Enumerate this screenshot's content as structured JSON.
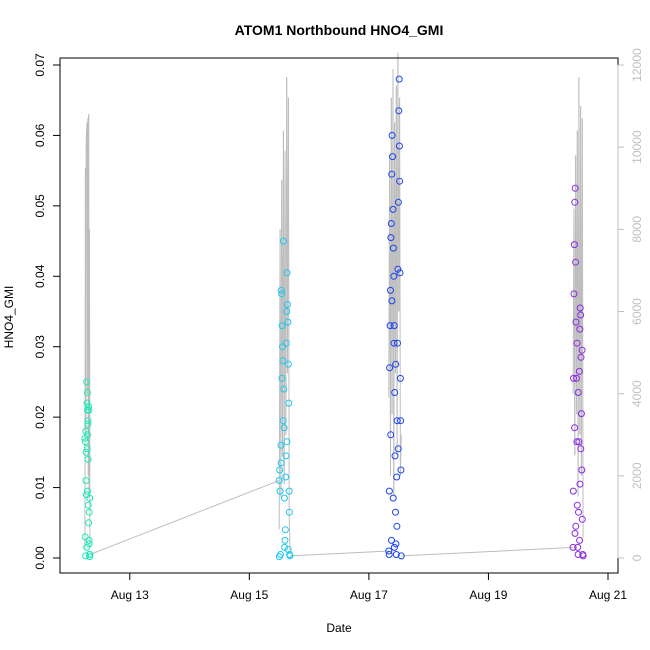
{
  "chart_data": {
    "type": "scatter",
    "title": "ATOM1 Northbound HNO4_GMI",
    "xlabel": "Date",
    "ylabel": "HNO4_GMI",
    "xlim": [
      "2016-08-12T00:00",
      "2016-08-21T00:00"
    ],
    "ylim": [
      0,
      0.07
    ],
    "x_ticks": [
      "Aug 13",
      "Aug 15",
      "Aug 17",
      "Aug 19",
      "Aug 21"
    ],
    "y_ticks": [
      "0.00",
      "0.01",
      "0.02",
      "0.03",
      "0.04",
      "0.05",
      "0.06",
      "0.07"
    ],
    "secondary_axis": {
      "ylim": [
        0,
        12000
      ],
      "ticks": [
        "0",
        "2000",
        "4000",
        "6000",
        "8000",
        "10000",
        "12000"
      ],
      "color": "#c0c0c0"
    },
    "series": [
      {
        "color": "#1de9b6",
        "values": [
          [
            "2016-08-12T06:00",
            0.017
          ],
          [
            "2016-08-12T06:10",
            0.0165
          ],
          [
            "2016-08-12T06:20",
            0.018
          ],
          [
            "2016-08-12T06:30",
            0.015
          ],
          [
            "2016-08-12T06:40",
            0.025
          ],
          [
            "2016-08-12T06:50",
            0.022
          ],
          [
            "2016-08-12T07:00",
            0.021
          ],
          [
            "2016-08-12T07:10",
            0.019
          ],
          [
            "2016-08-12T07:20",
            0.0075
          ],
          [
            "2016-08-12T07:30",
            0.005
          ],
          [
            "2016-08-12T07:40",
            0.002
          ],
          [
            "2016-08-12T07:50",
            0.0005
          ],
          [
            "2016-08-12T06:15",
            0.0003
          ],
          [
            "2016-08-12T06:25",
            0.011
          ],
          [
            "2016-08-12T06:35",
            0.009
          ],
          [
            "2016-08-12T06:45",
            0.0015
          ],
          [
            "2016-08-12T06:55",
            0.0155
          ],
          [
            "2016-08-12T07:05",
            0.0175
          ],
          [
            "2016-08-12T07:15",
            0.014
          ],
          [
            "2016-08-12T07:25",
            0.0215
          ],
          [
            "2016-08-12T07:35",
            0.021
          ],
          [
            "2016-08-12T07:45",
            0.0065
          ],
          [
            "2016-08-12T07:55",
            0.0085
          ],
          [
            "2016-08-12T08:00",
            0.0005
          ],
          [
            "2016-08-12T06:05",
            0.003
          ],
          [
            "2016-08-12T06:58",
            0.0235
          ],
          [
            "2016-08-12T07:12",
            0.0195
          ],
          [
            "2016-08-12T07:38",
            0.0025
          ],
          [
            "2016-08-12T07:52",
            0.0002
          ],
          [
            "2016-08-12T07:02",
            0.0095
          ]
        ]
      },
      {
        "color": "#1ec8f0",
        "values": [
          [
            "2016-08-15T12:00",
            0.011
          ],
          [
            "2016-08-15T12:10",
            0.0125
          ],
          [
            "2016-08-15T12:20",
            0.0095
          ],
          [
            "2016-08-15T12:30",
            0.0005
          ],
          [
            "2016-08-15T12:40",
            0.016
          ],
          [
            "2016-08-15T12:50",
            0.038
          ],
          [
            "2016-08-15T13:00",
            0.0375
          ],
          [
            "2016-08-15T13:10",
            0.033
          ],
          [
            "2016-08-15T13:20",
            0.03
          ],
          [
            "2016-08-15T13:30",
            0.028
          ],
          [
            "2016-08-15T13:40",
            0.045
          ],
          [
            "2016-08-15T13:50",
            0.024
          ],
          [
            "2016-08-15T14:00",
            0.0185
          ],
          [
            "2016-08-15T14:10",
            0.0015
          ],
          [
            "2016-08-15T14:20",
            0.0025
          ],
          [
            "2016-08-15T14:30",
            0.004
          ],
          [
            "2016-08-15T14:40",
            0.0145
          ],
          [
            "2016-08-15T14:50",
            0.0305
          ],
          [
            "2016-08-15T15:00",
            0.035
          ],
          [
            "2016-08-15T15:10",
            0.0405
          ],
          [
            "2016-08-15T15:20",
            0.036
          ],
          [
            "2016-08-15T15:30",
            0.0335
          ],
          [
            "2016-08-15T15:40",
            0.0275
          ],
          [
            "2016-08-15T15:50",
            0.022
          ],
          [
            "2016-08-15T16:00",
            0.0095
          ],
          [
            "2016-08-15T16:10",
            0.0005
          ],
          [
            "2016-08-15T16:20",
            0.0003
          ],
          [
            "2016-08-15T12:05",
            0.0002
          ],
          [
            "2016-08-15T12:45",
            0.0135
          ],
          [
            "2016-08-15T13:05",
            0.0255
          ],
          [
            "2016-08-15T13:35",
            0.0195
          ],
          [
            "2016-08-15T14:05",
            0.0085
          ],
          [
            "2016-08-15T14:35",
            0.0115
          ],
          [
            "2016-08-15T15:05",
            0.0165
          ],
          [
            "2016-08-15T15:35",
            0.0012
          ],
          [
            "2016-08-15T16:05",
            0.0065
          ]
        ]
      },
      {
        "color": "#1a44f0",
        "values": [
          [
            "2016-08-17T08:00",
            0.001
          ],
          [
            "2016-08-17T08:10",
            0.0005
          ],
          [
            "2016-08-17T08:20",
            0.027
          ],
          [
            "2016-08-17T08:30",
            0.033
          ],
          [
            "2016-08-17T08:40",
            0.038
          ],
          [
            "2016-08-17T08:50",
            0.0455
          ],
          [
            "2016-08-17T09:00",
            0.0475
          ],
          [
            "2016-08-17T09:10",
            0.0545
          ],
          [
            "2016-08-17T09:20",
            0.06
          ],
          [
            "2016-08-17T09:30",
            0.057
          ],
          [
            "2016-08-17T09:40",
            0.0495
          ],
          [
            "2016-08-17T09:50",
            0.044
          ],
          [
            "2016-08-17T10:00",
            0.04
          ],
          [
            "2016-08-17T10:10",
            0.033
          ],
          [
            "2016-08-17T10:20",
            0.0235
          ],
          [
            "2016-08-17T10:30",
            0.0145
          ],
          [
            "2016-08-17T10:40",
            0.0065
          ],
          [
            "2016-08-17T10:50",
            0.002
          ],
          [
            "2016-08-17T11:00",
            0.0005
          ],
          [
            "2016-08-17T11:10",
            0.0115
          ],
          [
            "2016-08-17T11:20",
            0.0195
          ],
          [
            "2016-08-17T11:30",
            0.0305
          ],
          [
            "2016-08-17T11:40",
            0.041
          ],
          [
            "2016-08-17T11:50",
            0.0505
          ],
          [
            "2016-08-17T12:00",
            0.0635
          ],
          [
            "2016-08-17T12:10",
            0.068
          ],
          [
            "2016-08-17T12:20",
            0.0535
          ],
          [
            "2016-08-17T12:30",
            0.0405
          ],
          [
            "2016-08-17T12:40",
            0.0255
          ],
          [
            "2016-08-17T12:50",
            0.0125
          ],
          [
            "2016-08-17T13:00",
            0.0003
          ],
          [
            "2016-08-17T08:15",
            0.0095
          ],
          [
            "2016-08-17T08:45",
            0.0175
          ],
          [
            "2016-08-17T09:15",
            0.0365
          ],
          [
            "2016-08-17T09:45",
            0.0085
          ],
          [
            "2016-08-17T10:15",
            0.0015
          ],
          [
            "2016-08-17T10:45",
            0.0275
          ],
          [
            "2016-08-17T11:15",
            0.0045
          ],
          [
            "2016-08-17T11:45",
            0.0155
          ],
          [
            "2016-08-17T12:15",
            0.0585
          ],
          [
            "2016-08-17T12:45",
            0.0195
          ],
          [
            "2016-08-17T09:05",
            0.0025
          ],
          [
            "2016-08-17T10:05",
            0.0305
          ]
        ]
      },
      {
        "color": "#8a2be2",
        "values": [
          [
            "2016-08-20T10:00",
            0.0015
          ],
          [
            "2016-08-20T10:10",
            0.0255
          ],
          [
            "2016-08-20T10:20",
            0.0375
          ],
          [
            "2016-08-20T10:30",
            0.0445
          ],
          [
            "2016-08-20T10:40",
            0.0505
          ],
          [
            "2016-08-20T10:50",
            0.0525
          ],
          [
            "2016-08-20T11:00",
            0.042
          ],
          [
            "2016-08-20T11:10",
            0.0335
          ],
          [
            "2016-08-20T11:20",
            0.0255
          ],
          [
            "2016-08-20T11:30",
            0.0165
          ],
          [
            "2016-08-20T11:40",
            0.0075
          ],
          [
            "2016-08-20T11:50",
            0.0015
          ],
          [
            "2016-08-20T12:00",
            0.0005
          ],
          [
            "2016-08-20T12:10",
            0.0065
          ],
          [
            "2016-08-20T12:20",
            0.0165
          ],
          [
            "2016-08-20T12:30",
            0.0265
          ],
          [
            "2016-08-20T12:40",
            0.0325
          ],
          [
            "2016-08-20T12:50",
            0.0355
          ],
          [
            "2016-08-20T13:00",
            0.0345
          ],
          [
            "2016-08-20T13:10",
            0.0285
          ],
          [
            "2016-08-20T13:20",
            0.0205
          ],
          [
            "2016-08-20T13:30",
            0.0125
          ],
          [
            "2016-08-20T13:40",
            0.0055
          ],
          [
            "2016-08-20T13:50",
            0.0005
          ],
          [
            "2016-08-20T14:00",
            0.0003
          ],
          [
            "2016-08-20T10:05",
            0.0095
          ],
          [
            "2016-08-20T10:35",
            0.0185
          ],
          [
            "2016-08-20T11:05",
            0.0045
          ],
          [
            "2016-08-20T11:35",
            0.0305
          ],
          [
            "2016-08-20T12:05",
            0.0235
          ],
          [
            "2016-08-20T12:35",
            0.0025
          ],
          [
            "2016-08-20T13:05",
            0.0155
          ],
          [
            "2016-08-20T13:35",
            0.0295
          ],
          [
            "2016-08-20T10:45",
            0.0035
          ],
          [
            "2016-08-20T12:45",
            0.0105
          ]
        ]
      }
    ],
    "altitude_series": {
      "color": "#bdbdbd",
      "values": [
        [
          "2016-08-12T06:00",
          200
        ],
        [
          "2016-08-12T06:10",
          9500
        ],
        [
          "2016-08-12T06:20",
          3000
        ],
        [
          "2016-08-12T06:30",
          10200
        ],
        [
          "2016-08-12T06:40",
          10400
        ],
        [
          "2016-08-12T06:50",
          10600
        ],
        [
          "2016-08-12T07:00",
          4000
        ],
        [
          "2016-08-12T07:10",
          10700
        ],
        [
          "2016-08-12T07:20",
          2000
        ],
        [
          "2016-08-12T07:30",
          10800
        ],
        [
          "2016-08-12T07:40",
          1500
        ],
        [
          "2016-08-12T07:50",
          8000
        ],
        [
          "2016-08-12T08:00",
          300
        ],
        [
          "2016-08-15T12:00",
          700
        ],
        [
          "2016-08-15T12:20",
          8000
        ],
        [
          "2016-08-15T12:40",
          1500
        ],
        [
          "2016-08-15T13:00",
          9200
        ],
        [
          "2016-08-15T13:20",
          2500
        ],
        [
          "2016-08-15T13:40",
          10400
        ],
        [
          "2016-08-15T14:00",
          1800
        ],
        [
          "2016-08-15T14:20",
          9900
        ],
        [
          "2016-08-15T14:40",
          3000
        ],
        [
          "2016-08-15T15:00",
          11700
        ],
        [
          "2016-08-15T15:20",
          4500
        ],
        [
          "2016-08-15T15:40",
          11200
        ],
        [
          "2016-08-15T16:00",
          1000
        ],
        [
          "2016-08-15T16:20",
          200
        ],
        [
          "2016-08-17T08:00",
          3900
        ],
        [
          "2016-08-17T08:20",
          9800
        ],
        [
          "2016-08-17T08:40",
          2000
        ],
        [
          "2016-08-17T09:00",
          11200
        ],
        [
          "2016-08-17T09:20",
          3500
        ],
        [
          "2016-08-17T09:40",
          11900
        ],
        [
          "2016-08-17T10:00",
          1500
        ],
        [
          "2016-08-17T10:20",
          10600
        ],
        [
          "2016-08-17T10:40",
          4500
        ],
        [
          "2016-08-17T11:00",
          11500
        ],
        [
          "2016-08-17T11:20",
          2500
        ],
        [
          "2016-08-17T11:40",
          12300
        ],
        [
          "2016-08-17T12:00",
          6000
        ],
        [
          "2016-08-17T12:20",
          11200
        ],
        [
          "2016-08-17T12:40",
          2000
        ],
        [
          "2016-08-17T13:00",
          3000
        ],
        [
          "2016-08-20T10:00",
          4000
        ],
        [
          "2016-08-20T10:20",
          8500
        ],
        [
          "2016-08-20T10:40",
          2500
        ],
        [
          "2016-08-20T11:00",
          9800
        ],
        [
          "2016-08-20T11:20",
          3500
        ],
        [
          "2016-08-20T11:40",
          10400
        ],
        [
          "2016-08-20T12:00",
          1500
        ],
        [
          "2016-08-20T12:20",
          11700
        ],
        [
          "2016-08-20T12:40",
          3000
        ],
        [
          "2016-08-20T13:00",
          11000
        ],
        [
          "2016-08-20T13:20",
          2000
        ],
        [
          "2016-08-20T13:40",
          10700
        ],
        [
          "2016-08-20T14:00",
          500
        ]
      ]
    }
  }
}
